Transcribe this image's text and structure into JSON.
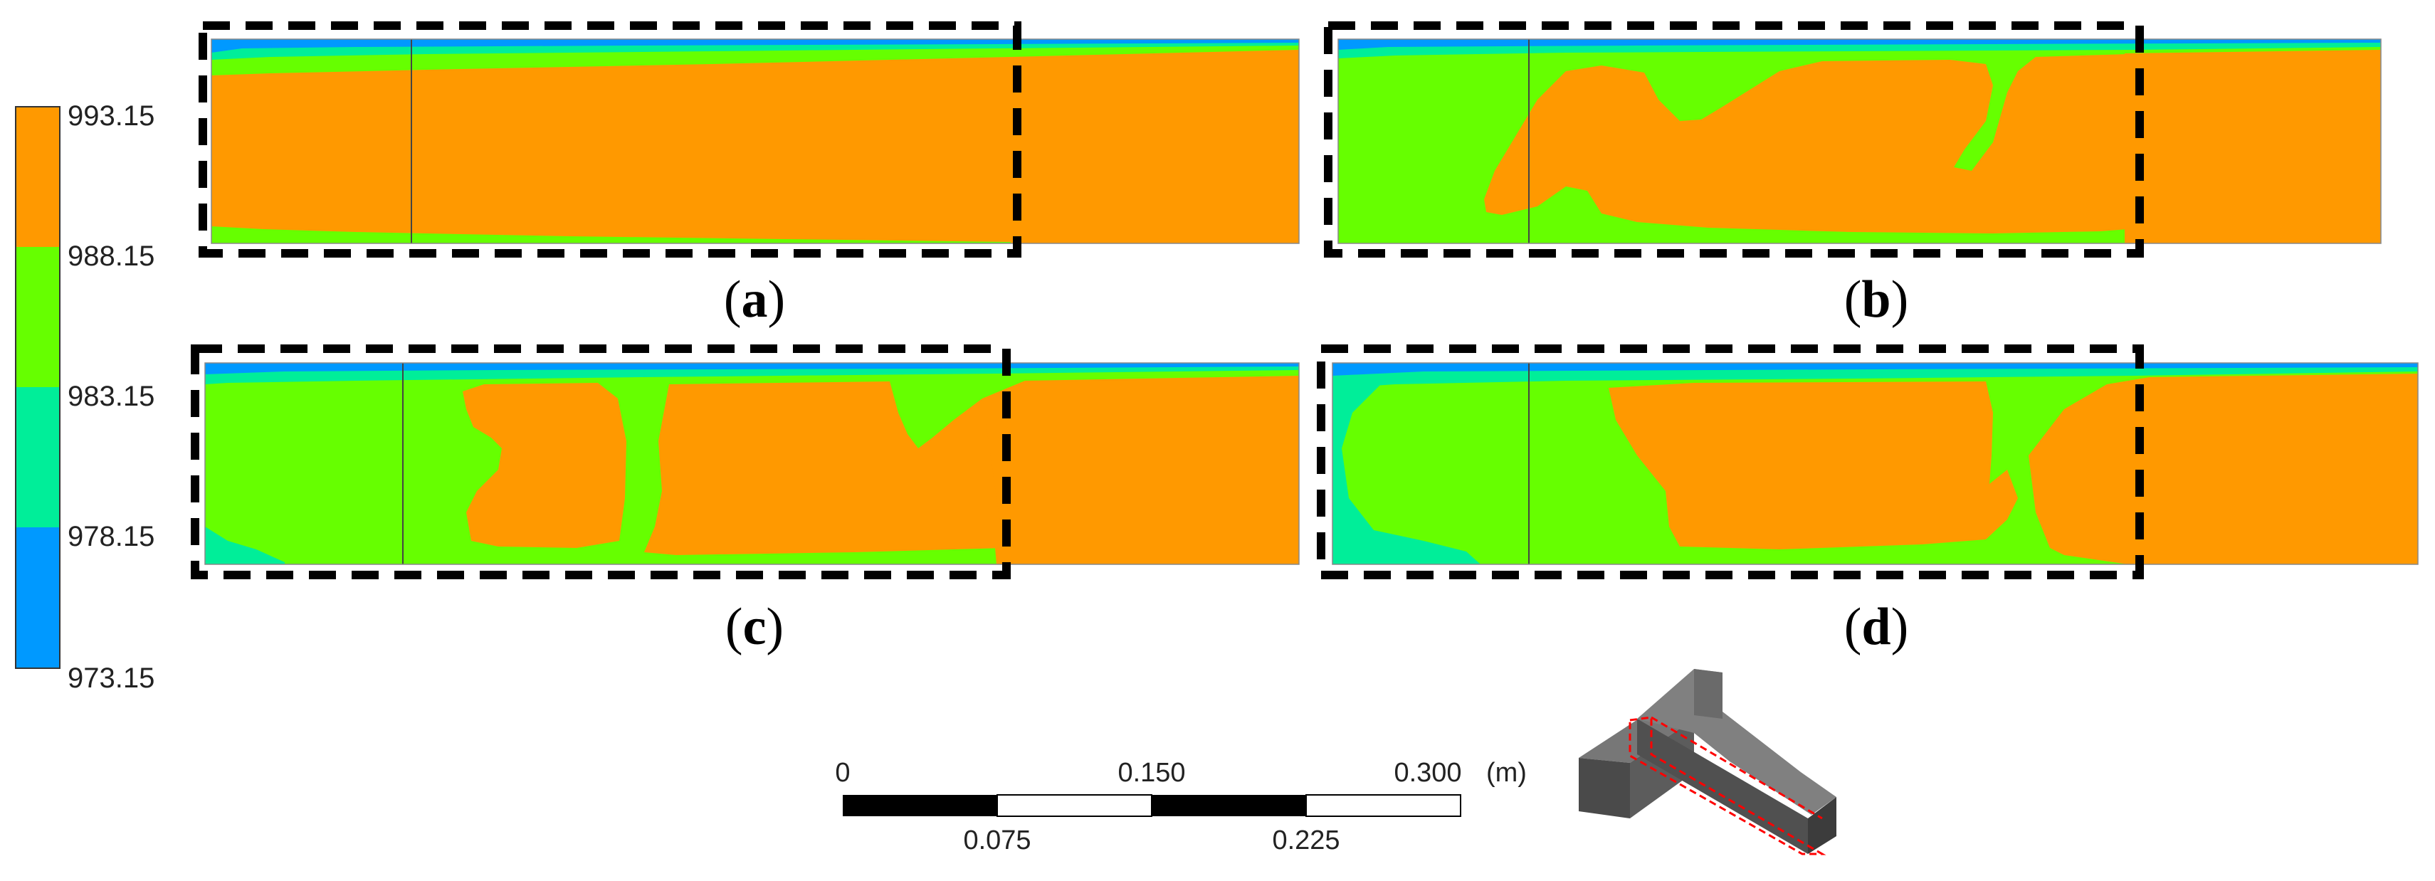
{
  "legend": {
    "ticks": [
      "993.15",
      "988.15",
      "983.15",
      "978.15",
      "973.15"
    ],
    "bands": [
      {
        "range": "988.15–993.15",
        "color": "#ff9900"
      },
      {
        "range": "983.15–988.15",
        "color": "#66ff00"
      },
      {
        "range": "978.15–983.15",
        "color": "#00ee99"
      },
      {
        "range": "973.15–978.15",
        "color": "#0099ff"
      }
    ]
  },
  "panels": [
    {
      "id": "a",
      "label_open": "(",
      "label_letter": "a",
      "label_close": ")"
    },
    {
      "id": "b",
      "label_open": "(",
      "label_letter": "b",
      "label_close": ")"
    },
    {
      "id": "c",
      "label_open": "(",
      "label_letter": "c",
      "label_close": ")"
    },
    {
      "id": "d",
      "label_open": "(",
      "label_letter": "d",
      "label_close": ")"
    }
  ],
  "scale_bar": {
    "top_labels": [
      "0",
      "0.150",
      "0.300"
    ],
    "bottom_labels": [
      "0.075",
      "0.225"
    ],
    "unit": "(m)"
  },
  "colors": {
    "orange": "#ff9900",
    "green": "#66ff00",
    "teal": "#00ee99",
    "cyan": "#00ccdd",
    "blue": "#0099ff",
    "outline": "#000000",
    "geometry_gray": "#555555",
    "highlight_red": "#ff0000"
  }
}
